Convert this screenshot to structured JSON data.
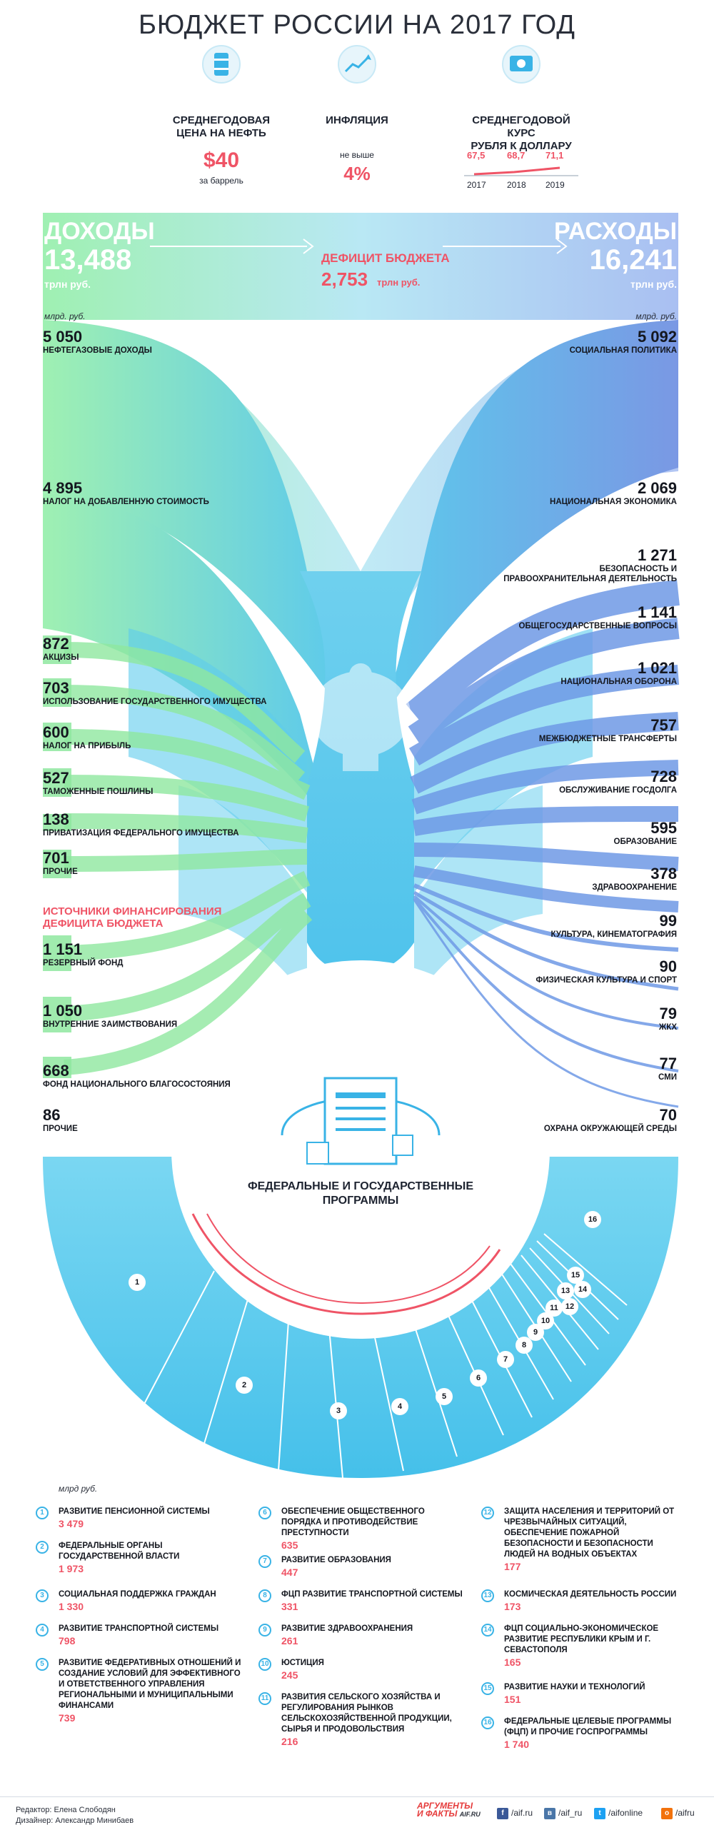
{
  "title": "БЮДЖЕТ РОССИИ НА 2017 ГОД",
  "indicators": {
    "oil": {
      "label_line1": "СРЕДНЕГОДОВАЯ",
      "label_line2": "ЦЕНА НА НЕФТЬ",
      "value": "$40",
      "unit": "за баррель"
    },
    "inflation": {
      "label": "ИНФЛЯЦИЯ",
      "prefix": "не выше",
      "value": "4%"
    },
    "rate": {
      "label_line1": "СРЕДНЕГОДОВОЙ КУРС",
      "label_line2": "РУБЛЯ К ДОЛЛАРУ",
      "values": [
        "67,5",
        "68,7",
        "71,1"
      ],
      "years": [
        "2017",
        "2018",
        "2019"
      ]
    }
  },
  "income": {
    "title": "ДОХОДЫ",
    "total": "13,488",
    "unit": "трлн руб."
  },
  "expense": {
    "title": "РАСХОДЫ",
    "total": "16,241",
    "unit": "трлн руб."
  },
  "deficit": {
    "title": "ДЕФИЦИТ БЮДЖЕТА",
    "value": "2,753",
    "unit": "трлн руб."
  },
  "mlrd_unit": "млрд. руб.",
  "income_items": [
    {
      "amount": "5 050",
      "label": "НЕФТЕГАЗОВЫЕ ДОХОДЫ"
    },
    {
      "amount": "4 895",
      "label": "НАЛОГ НА ДОБАВЛЕННУЮ СТОИМОСТЬ"
    },
    {
      "amount": "872",
      "label": "АКЦИЗЫ"
    },
    {
      "amount": "703",
      "label": "ИСПОЛЬЗОВАНИЕ ГОСУДАРСТВЕННОГО ИМУЩЕСТВА"
    },
    {
      "amount": "600",
      "label": "НАЛОГ НА ПРИБЫЛЬ"
    },
    {
      "amount": "527",
      "label": "ТАМОЖЕННЫЕ ПОШЛИНЫ"
    },
    {
      "amount": "138",
      "label": "ПРИВАТИЗАЦИЯ ФЕДЕРАЛЬНОГО ИМУЩЕСТВА"
    },
    {
      "amount": "701",
      "label": "ПРОЧИЕ"
    }
  ],
  "deficit_sources": {
    "title_line1": "ИСТОЧНИКИ ФИНАНСИРОВАНИЯ",
    "title_line2": "ДЕФИЦИТА БЮДЖЕТА",
    "items": [
      {
        "amount": "1 151",
        "label": "РЕЗЕРВНЫЙ ФОНД"
      },
      {
        "amount": "1 050",
        "label": "ВНУТРЕННИЕ ЗАИМСТВОВАНИЯ"
      },
      {
        "amount": "668",
        "label": "ФОНД НАЦИОНАЛЬНОГО БЛАГОСОСТОЯНИЯ"
      },
      {
        "amount": "86",
        "label": "ПРОЧИЕ"
      }
    ]
  },
  "expense_items": [
    {
      "amount": "5 092",
      "label": "СОЦИАЛЬНАЯ ПОЛИТИКА"
    },
    {
      "amount": "2 069",
      "label": "НАЦИОНАЛЬНАЯ ЭКОНОМИКА"
    },
    {
      "amount": "1 271",
      "label": "БЕЗОПАСНОСТЬ И",
      "label2": "ПРАВООХРАНИТЕЛЬНАЯ ДЕЯТЕЛЬНОСТЬ"
    },
    {
      "amount": "1 141",
      "label": "ОБЩЕГОСУДАРСТВЕННЫЕ ВОПРОСЫ"
    },
    {
      "amount": "1 021",
      "label": "НАЦИОНАЛЬНАЯ ОБОРОНА"
    },
    {
      "amount": "757",
      "label": "МЕЖБЮДЖЕТНЫЕ ТРАНСФЕРТЫ"
    },
    {
      "amount": "728",
      "label": "ОБСЛУЖИВАНИЕ ГОСДОЛГА"
    },
    {
      "amount": "595",
      "label": "ОБРАЗОВАНИЕ"
    },
    {
      "amount": "378",
      "label": "ЗДРАВООХРАНЕНИЕ"
    },
    {
      "amount": "99",
      "label": "КУЛЬТУРА, КИНЕМАТОГРАФИЯ"
    },
    {
      "amount": "90",
      "label": "ФИЗИЧЕСКАЯ КУЛЬТУРА И СПОРТ"
    },
    {
      "amount": "79",
      "label": "ЖКХ"
    },
    {
      "amount": "77",
      "label": "СМИ"
    },
    {
      "amount": "70",
      "label": "ОХРАНА ОКРУЖАЮЩЕЙ СРЕДЫ"
    }
  ],
  "programs": {
    "title_line1": "ФЕДЕРАЛЬНЫЕ И ГОСУДАРСТВЕННЫЕ",
    "title_line2": "ПРОГРАММЫ",
    "unit": "млрд руб.",
    "segment_numbers": [
      "1",
      "2",
      "3",
      "4",
      "5",
      "6",
      "7",
      "8",
      "9",
      "10",
      "11",
      "12",
      "13",
      "14",
      "15",
      "16"
    ],
    "items": [
      {
        "n": "1",
        "label": "РАЗВИТИЕ ПЕНСИОННОЙ СИСТЕМЫ",
        "value": "3 479"
      },
      {
        "n": "2",
        "label": "ФЕДЕРАЛЬНЫЕ ОРГАНЫ ГОСУДАРСТВЕННОЙ ВЛАСТИ",
        "value": "1 973"
      },
      {
        "n": "3",
        "label": "СОЦИАЛЬНАЯ ПОДДЕРЖКА ГРАЖДАН",
        "value": "1 330"
      },
      {
        "n": "4",
        "label": "РАЗВИТИЕ ТРАНСПОРТНОЙ СИСТЕМЫ",
        "value": "798"
      },
      {
        "n": "5",
        "label": "РАЗВИТИЕ ФЕДЕРАТИВНЫХ ОТНОШЕНИЙ И СОЗДАНИЕ УСЛОВИЙ ДЛЯ ЭФФЕКТИВНОГО И ОТВЕТСТВЕННОГО УПРАВЛЕНИЯ РЕГИОНАЛЬНЫМИ И МУНИЦИПАЛЬНЫМИ ФИНАНСАМИ",
        "value": "739"
      },
      {
        "n": "6",
        "label": "ОБЕСПЕЧЕНИЕ ОБЩЕСТВЕННОГО ПОРЯДКА И ПРОТИВОДЕЙСТВИЕ ПРЕСТУПНОСТИ",
        "value": "635"
      },
      {
        "n": "7",
        "label": "РАЗВИТИЕ ОБРАЗОВАНИЯ",
        "value": "447"
      },
      {
        "n": "8",
        "label": "ФЦП РАЗВИТИЕ ТРАНСПОРТНОЙ СИСТЕМЫ",
        "value": "331"
      },
      {
        "n": "9",
        "label": "РАЗВИТИЕ ЗДРАВООХРАНЕНИЯ",
        "value": "261"
      },
      {
        "n": "10",
        "label": "ЮСТИЦИЯ",
        "value": "245"
      },
      {
        "n": "11",
        "label": "РАЗВИТИЯ СЕЛЬСКОГО ХОЗЯЙСТВА И РЕГУЛИРОВАНИЯ РЫНКОВ СЕЛЬСКОХОЗЯЙСТВЕННОЙ ПРОДУКЦИИ, СЫРЬЯ И ПРОДОВОЛЬСТВИЯ",
        "value": "216"
      },
      {
        "n": "12",
        "label": "ЗАЩИТА НАСЕЛЕНИЯ И ТЕРРИТОРИЙ ОТ ЧРЕЗВЫЧАЙНЫХ СИТУАЦИЙ, ОБЕСПЕЧЕНИЕ ПОЖАРНОЙ БЕЗОПАСНОСТИ И БЕЗОПАСНОСТИ ЛЮДЕЙ НА ВОДНЫХ ОБЪЕКТАХ",
        "value": "177"
      },
      {
        "n": "13",
        "label": "КОСМИЧЕСКАЯ ДЕЯТЕЛЬНОСТЬ РОССИИ",
        "value": "173"
      },
      {
        "n": "14",
        "label": "ФЦП СОЦИАЛЬНО-ЭКОНОМИЧЕСКОЕ РАЗВИТИЕ РЕСПУБЛИКИ КРЫМ И Г. СЕВАСТОПОЛЯ",
        "value": "165"
      },
      {
        "n": "15",
        "label": "РАЗВИТИЕ НАУКИ И ТЕХНОЛОГИЙ",
        "value": "151"
      },
      {
        "n": "16",
        "label": "ФЕДЕРАЛЬНЫЕ ЦЕЛЕВЫЕ ПРОГРАММЫ (ФЦП) И ПРОЧИЕ ГОСПРОГРАММЫ",
        "value": "1 740"
      }
    ]
  },
  "footer": {
    "editor": "Редактор: Елена Слободян",
    "designer": "Дизайнер: Александр Минибаев",
    "brand_line1": "АРГУМЕНТЫ",
    "brand_line2": "И ФАКТЫ",
    "brand_domain": "AIF.RU",
    "socials": [
      "/aif.ru",
      "/aif_ru",
      "/aifonline",
      "/aifru"
    ]
  },
  "colors": {
    "accent_red": "#ef5466",
    "blue": "#39b3e6",
    "green": "#8fe8a0",
    "dark_blue": "#5a8fe0"
  }
}
